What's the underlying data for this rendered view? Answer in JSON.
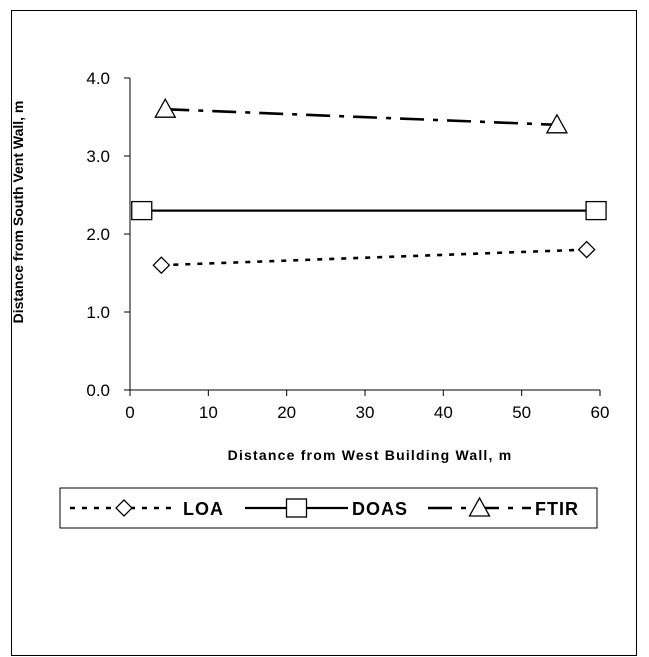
{
  "chart_data": {
    "type": "line",
    "xlabel": "Distance from West Building Wall, m",
    "ylabel": "Distance from South Vent Wall, m",
    "xlim": [
      0,
      60
    ],
    "ylim": [
      0,
      4
    ],
    "x_ticks": [
      0,
      10,
      20,
      30,
      40,
      50,
      60
    ],
    "x_tick_labels": [
      "0",
      "10",
      "20",
      "30",
      "40",
      "50",
      "60"
    ],
    "y_ticks": [
      0,
      1,
      2,
      3,
      4
    ],
    "y_tick_labels": [
      "0.0",
      "1.0",
      "2.0",
      "3.0",
      "4.0"
    ],
    "grid": false,
    "legend_position": "bottom",
    "series": [
      {
        "name": "LOA",
        "marker": "diamond",
        "line_style": "short-dash",
        "color": "#000000",
        "x": [
          4,
          58.3
        ],
        "y": [
          1.6,
          1.8
        ]
      },
      {
        "name": "DOAS",
        "marker": "square",
        "line_style": "solid",
        "color": "#000000",
        "x": [
          1.5,
          59.5
        ],
        "y": [
          2.3,
          2.3
        ]
      },
      {
        "name": "FTIR",
        "marker": "triangle",
        "line_style": "dash-dot",
        "color": "#000000",
        "x": [
          4.5,
          54.5
        ],
        "y": [
          3.6,
          3.4
        ]
      }
    ]
  }
}
